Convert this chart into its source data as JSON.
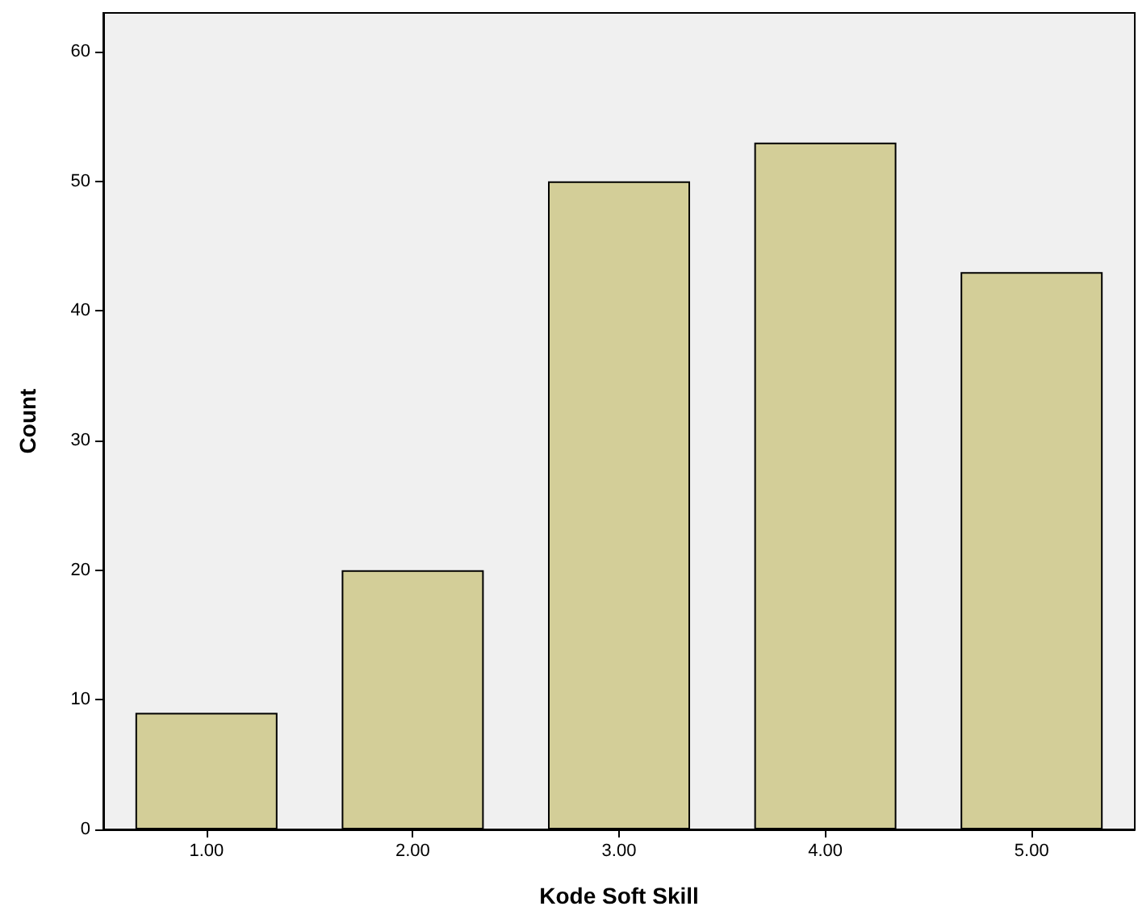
{
  "chart_data": {
    "type": "bar",
    "xlabel": "Kode Soft Skill",
    "ylabel": "Count",
    "categories": [
      "1.00",
      "2.00",
      "3.00",
      "4.00",
      "5.00"
    ],
    "values": [
      9,
      20,
      50,
      53,
      43
    ],
    "color": "#d3ce98",
    "ylim": [
      0,
      63
    ],
    "yticks": [
      0,
      10,
      20,
      30,
      40,
      50,
      60
    ],
    "grid": false
  }
}
